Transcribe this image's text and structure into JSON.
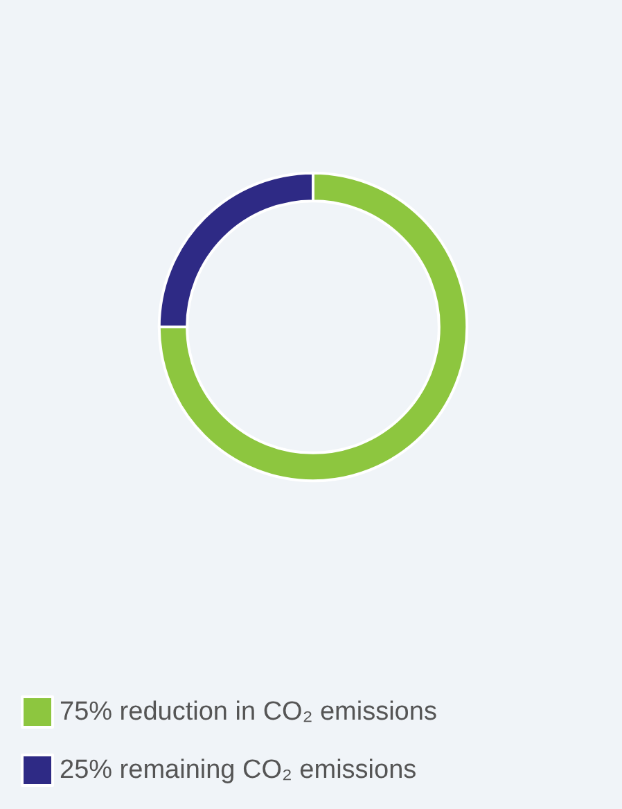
{
  "chart_data": {
    "type": "donut",
    "categories": [
      "75% reduction in CO₂ emissions",
      "25% remaining CO₂ emissions"
    ],
    "values": [
      75,
      25
    ],
    "colors": [
      "#8dc63f",
      "#2e2a85"
    ],
    "legend": "bottom left"
  }
}
